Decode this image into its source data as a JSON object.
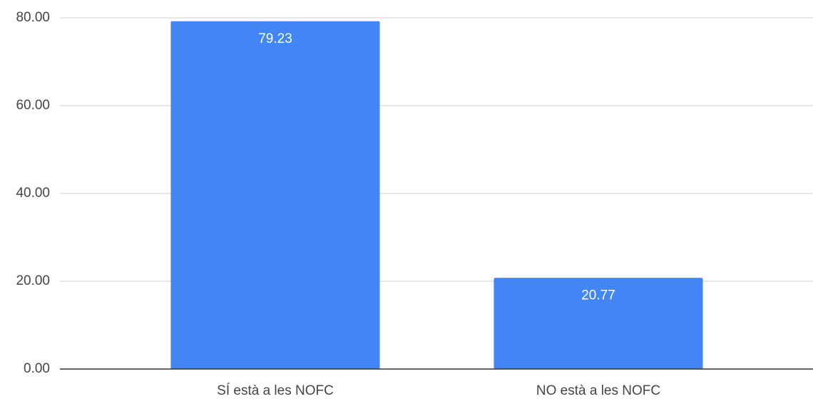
{
  "chart_data": {
    "type": "bar",
    "categories": [
      "SÍ està a les NOFC",
      "NO està a les NOFC"
    ],
    "values": [
      79.23,
      20.77
    ],
    "color": "#4285f4",
    "ylim": [
      0,
      80
    ],
    "yticks": [
      {
        "value": 0,
        "label": "0.00"
      },
      {
        "value": 20,
        "label": "20.00"
      },
      {
        "value": 40,
        "label": "40.00"
      },
      {
        "value": 60,
        "label": "60.00"
      },
      {
        "value": 80,
        "label": "80.00"
      }
    ],
    "grid": true
  }
}
